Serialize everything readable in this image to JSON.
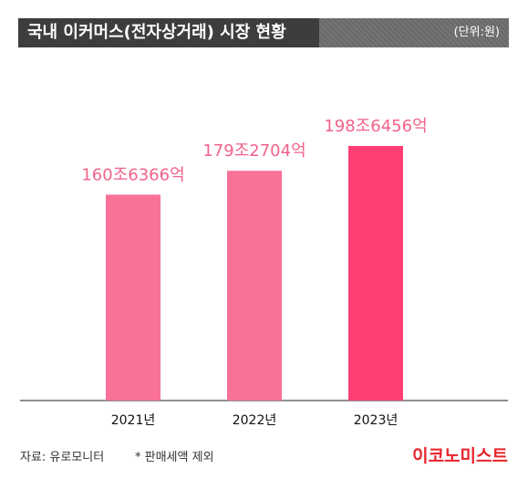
{
  "header": {
    "title": "국내 이커머스(전자상거래) 시장 현황",
    "unit": "(단위:원)"
  },
  "chart_data": {
    "type": "bar",
    "categories": [
      "2021년",
      "2022년",
      "2023년"
    ],
    "values": [
      160.6366,
      179.2704,
      198.6456
    ],
    "value_labels": [
      "160조6366억",
      "179조2704억",
      "198조6456억"
    ],
    "title": "국내 이커머스(전자상거래) 시장 현황",
    "xlabel": "",
    "ylabel": "",
    "unit": "조원",
    "grid": false,
    "colors": [
      "#f87197",
      "#f87197",
      "#ff3e74"
    ],
    "label_color": "#f2628a"
  },
  "footer": {
    "source": "자료: 유로모니터",
    "note": "* 판매세액 제외",
    "brand": "이코노미스트",
    "brand_color": "#e8242c"
  }
}
